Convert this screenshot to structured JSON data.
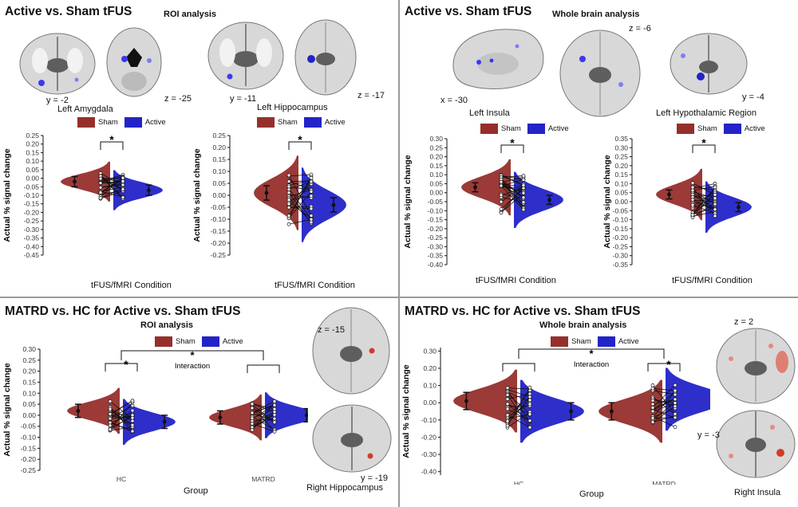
{
  "colors": {
    "sham": "#962f2c",
    "active": "#2323c8",
    "brain_bg": "#d8d8d8",
    "brain_dark": "#5e5e5e",
    "roi_blue": "#3a3af0",
    "roi_red": "#d23a2a"
  },
  "panels": {
    "tl": {
      "title": "Active vs. Sham tFUS",
      "subtitle": "ROI analysis",
      "coords": {
        "a": "y = -2",
        "b": "z = -25",
        "c": "y = -11",
        "d": "z = -17"
      },
      "region1": "Left Amygdala",
      "region2": "Left Hippocampus",
      "xlabel1": "tFUS/fMRI Condition",
      "xlabel2": "tFUS/fMRI Condition"
    },
    "tr": {
      "title": "Active vs. Sham tFUS",
      "subtitle": "Whole brain analysis",
      "coords": {
        "a": "x = -30",
        "b": "z = -6",
        "c": "y = -4"
      },
      "region1": "Left Insula",
      "region2": "Left Hypothalamic Region",
      "xlabel1": "tFUS/fMRI Condition",
      "xlabel2": "tFUS/fMRI Condition"
    },
    "bl": {
      "title": "MATRD vs. HC for Active vs. Sham tFUS",
      "subtitle": "ROI analysis",
      "coords": {
        "a": "z = -15",
        "b": "y = -19"
      },
      "region": "Right Hippocampus",
      "interaction": "Interaction",
      "xlabel": "Group"
    },
    "br": {
      "title": "MATRD vs. HC for Active vs. Sham tFUS",
      "subtitle": "Whole brain analysis",
      "coords": {
        "a": "z = 2",
        "b": "y = -3"
      },
      "region": "Right Insula",
      "interaction": "Interaction",
      "xlabel": "Group"
    }
  },
  "legend": {
    "sham": "Sham",
    "active": "Active"
  },
  "star": "*",
  "chart_data": [
    {
      "id": "amygdala",
      "type": "violin",
      "ylabel": "Actual % signal change",
      "xlabel": "tFUS/fMRI Condition",
      "ylim": [
        -0.45,
        0.25
      ],
      "yticks": [
        0.25,
        0.2,
        0.15,
        0.1,
        0.05,
        0.0,
        -0.05,
        -0.1,
        -0.15,
        -0.2,
        -0.25,
        -0.3,
        -0.35,
        -0.4,
        -0.45
      ],
      "series": [
        {
          "name": "Sham",
          "mean": -0.02,
          "ci": [
            -0.05,
            0.01
          ]
        },
        {
          "name": "Active",
          "mean": -0.07,
          "ci": [
            -0.1,
            -0.04
          ]
        }
      ],
      "significance": "*"
    },
    {
      "id": "hippocampus",
      "type": "violin",
      "ylabel": "Actual % signal change",
      "xlabel": "tFUS/fMRI Condition",
      "ylim": [
        -0.25,
        0.25
      ],
      "yticks": [
        0.25,
        0.2,
        0.15,
        0.1,
        0.05,
        0.0,
        -0.05,
        -0.1,
        -0.15,
        -0.2,
        -0.25
      ],
      "series": [
        {
          "name": "Sham",
          "mean": 0.01,
          "ci": [
            -0.02,
            0.04
          ]
        },
        {
          "name": "Active",
          "mean": -0.04,
          "ci": [
            -0.07,
            -0.01
          ]
        }
      ],
      "significance": "*"
    },
    {
      "id": "insula",
      "type": "violin",
      "ylabel": "Actual % signal change",
      "xlabel": "tFUS/fMRI Condition",
      "ylim": [
        -0.4,
        0.3
      ],
      "yticks": [
        0.3,
        0.25,
        0.2,
        0.15,
        0.1,
        0.05,
        0.0,
        -0.05,
        -0.1,
        -0.15,
        -0.2,
        -0.25,
        -0.3,
        -0.35,
        -0.4
      ],
      "series": [
        {
          "name": "Sham",
          "mean": 0.03,
          "ci": [
            0.005,
            0.055
          ]
        },
        {
          "name": "Active",
          "mean": -0.04,
          "ci": [
            -0.065,
            -0.015
          ]
        }
      ],
      "significance": "*"
    },
    {
      "id": "hypothalamic",
      "type": "violin",
      "ylabel": "Actual % signal change",
      "xlabel": "tFUS/fMRI Condition",
      "ylim": [
        -0.35,
        0.35
      ],
      "yticks": [
        0.35,
        0.3,
        0.25,
        0.2,
        0.15,
        0.1,
        0.05,
        0.0,
        -0.05,
        -0.1,
        -0.15,
        -0.2,
        -0.25,
        -0.3,
        -0.35
      ],
      "series": [
        {
          "name": "Sham",
          "mean": 0.04,
          "ci": [
            0.015,
            0.065
          ]
        },
        {
          "name": "Active",
          "mean": -0.03,
          "ci": [
            -0.055,
            -0.005
          ]
        }
      ],
      "significance": "*"
    },
    {
      "id": "right_hippocampus",
      "type": "violin",
      "ylabel": "Actual % signal change",
      "xlabel": "Group",
      "categories": [
        "HC",
        "MATRD"
      ],
      "ylim": [
        -0.25,
        0.3
      ],
      "yticks": [
        0.3,
        0.25,
        0.2,
        0.15,
        0.1,
        0.05,
        0.0,
        -0.05,
        -0.1,
        -0.15,
        -0.2,
        -0.25
      ],
      "groups": [
        {
          "name": "HC",
          "series": [
            {
              "name": "Sham",
              "mean": 0.02,
              "ci": [
                -0.01,
                0.05
              ]
            },
            {
              "name": "Active",
              "mean": -0.03,
              "ci": [
                -0.06,
                0.0
              ]
            }
          ]
        },
        {
          "name": "MATRD",
          "series": [
            {
              "name": "Sham",
              "mean": -0.01,
              "ci": [
                -0.04,
                0.02
              ]
            },
            {
              "name": "Active",
              "mean": 0.0,
              "ci": [
                -0.03,
                0.03
              ]
            }
          ]
        }
      ],
      "significance": [
        "*",
        "*"
      ]
    },
    {
      "id": "right_insula",
      "type": "violin",
      "ylabel": "Actual % signal change",
      "xlabel": "Group",
      "categories": [
        "HC",
        "MATRD"
      ],
      "ylim": [
        -0.42,
        0.32
      ],
      "yticks": [
        0.3,
        0.2,
        0.1,
        0.0,
        -0.1,
        -0.2,
        -0.3,
        -0.4
      ],
      "groups": [
        {
          "name": "HC",
          "series": [
            {
              "name": "Sham",
              "mean": 0.01,
              "ci": [
                -0.04,
                0.06
              ]
            },
            {
              "name": "Active",
              "mean": -0.05,
              "ci": [
                -0.1,
                0.0
              ]
            }
          ]
        },
        {
          "name": "MATRD",
          "series": [
            {
              "name": "Sham",
              "mean": -0.05,
              "ci": [
                -0.1,
                0.0
              ]
            },
            {
              "name": "Active",
              "mean": 0.02,
              "ci": [
                -0.03,
                0.07
              ]
            }
          ]
        }
      ],
      "significance": [
        "*",
        "*"
      ]
    }
  ]
}
